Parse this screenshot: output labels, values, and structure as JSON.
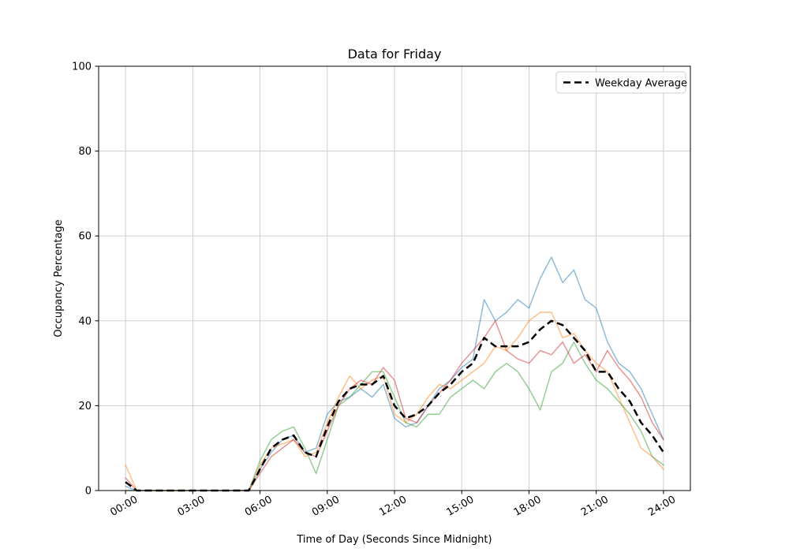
{
  "figure": {
    "background": "#ffffff"
  },
  "chart_data": {
    "type": "line",
    "title": "Data for Friday",
    "xlabel": "Time of Day (Seconds Since Midnight)",
    "ylabel": "Occupancy Percentage",
    "grid": true,
    "grid_color": "#c9c9c9",
    "legend": {
      "label": "Weekday Average",
      "position": "upper right"
    },
    "ylim": [
      0,
      100
    ],
    "yticks": [
      0,
      20,
      40,
      60,
      80,
      100
    ],
    "xlim_hours": [
      -1.2,
      25.2
    ],
    "xticks": {
      "hours": [
        0,
        3,
        6,
        9,
        12,
        15,
        18,
        21,
        24
      ],
      "labels": [
        "00:00",
        "03:00",
        "06:00",
        "09:00",
        "12:00",
        "15:00",
        "18:00",
        "21:00",
        "24:00"
      ]
    },
    "x_start_hour": 0,
    "x_step_hours": 0.5,
    "series": [
      {
        "id": "occupancy-series-1",
        "color": "#1f77b4",
        "opacity": 0.5,
        "width": 1.5,
        "values": [
          1,
          0,
          0,
          0,
          0,
          0,
          0,
          0,
          0,
          0,
          0,
          0,
          5,
          9,
          12,
          13,
          9,
          10,
          18,
          21,
          22,
          24,
          22,
          25,
          17,
          15,
          16,
          20,
          24,
          26,
          29,
          31,
          45,
          40,
          42,
          45,
          43,
          50,
          55,
          49,
          52,
          45,
          43,
          35,
          30,
          28,
          24,
          18,
          12
        ]
      },
      {
        "id": "occupancy-series-2",
        "color": "#ff7f0e",
        "opacity": 0.5,
        "width": 1.5,
        "values": [
          6,
          0,
          0,
          0,
          0,
          0,
          0,
          0,
          0,
          0,
          0,
          0,
          6,
          10,
          11,
          12,
          8,
          9,
          16,
          22,
          27,
          24,
          26,
          27,
          18,
          16,
          18,
          22,
          25,
          24,
          26,
          28,
          30,
          34,
          33,
          36,
          40,
          42,
          42,
          36,
          37,
          33,
          30,
          28,
          22,
          16,
          10,
          8,
          5
        ]
      },
      {
        "id": "occupancy-series-3",
        "color": "#2ca02c",
        "opacity": 0.5,
        "width": 1.5,
        "values": [
          0,
          0,
          0,
          0,
          0,
          0,
          0,
          0,
          0,
          0,
          0,
          0,
          7,
          12,
          14,
          15,
          10,
          4,
          12,
          20,
          22,
          25,
          28,
          28,
          22,
          16,
          15,
          18,
          18,
          22,
          24,
          26,
          24,
          28,
          30,
          28,
          24,
          19,
          28,
          30,
          35,
          30,
          26,
          24,
          21,
          18,
          14,
          8,
          6
        ]
      },
      {
        "id": "occupancy-series-4",
        "color": "#d62728",
        "opacity": 0.5,
        "width": 1.5,
        "values": [
          3,
          0,
          0,
          0,
          0,
          0,
          0,
          0,
          0,
          0,
          0,
          0,
          4,
          8,
          10,
          12,
          9,
          8,
          14,
          20,
          24,
          26,
          25,
          29,
          26,
          17,
          16,
          20,
          23,
          26,
          30,
          33,
          36,
          40,
          33,
          31,
          30,
          33,
          32,
          35,
          30,
          32,
          28,
          33,
          29,
          26,
          22,
          16,
          12
        ]
      }
    ],
    "average": {
      "label": "Weekday Average",
      "color": "#000000",
      "linestyle": "dashed",
      "width": 2.5,
      "values": [
        2,
        0,
        0,
        0,
        0,
        0,
        0,
        0,
        0,
        0,
        0,
        0,
        5,
        10,
        12,
        13,
        9,
        8,
        15,
        21,
        24,
        25,
        25,
        27,
        20,
        17,
        18,
        20,
        23,
        25,
        28,
        30,
        36,
        34,
        34,
        34,
        35,
        38,
        40,
        39,
        36,
        33,
        28,
        28,
        24,
        21,
        16,
        13,
        9
      ]
    }
  }
}
